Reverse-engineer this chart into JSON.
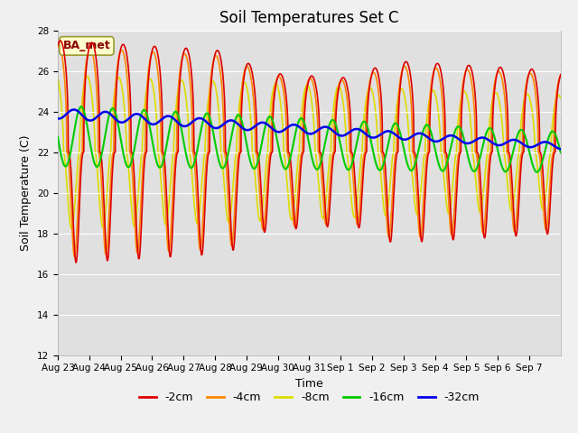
{
  "title": "Soil Temperatures Set C",
  "xlabel": "Time",
  "ylabel": "Soil Temperature (C)",
  "ylim": [
    12,
    28
  ],
  "yticks": [
    12,
    14,
    16,
    18,
    20,
    22,
    24,
    26,
    28
  ],
  "bg_color": "#e0e0e0",
  "fig_bg_color": "#f0f0f0",
  "legend_label": "BA_met",
  "colors": {
    "-2cm": "#dd0000",
    "-4cm": "#ff8800",
    "-8cm": "#dddd00",
    "-16cm": "#00cc00",
    "-32cm": "#0000ee"
  },
  "x_tick_labels": [
    "Aug 23",
    "Aug 24",
    "Aug 25",
    "Aug 26",
    "Aug 27",
    "Aug 28",
    "Aug 29",
    "Aug 30",
    "Aug 31",
    "Sep 1",
    "Sep 2",
    "Sep 3",
    "Sep 4",
    "Sep 5",
    "Sep 6",
    "Sep 7"
  ]
}
